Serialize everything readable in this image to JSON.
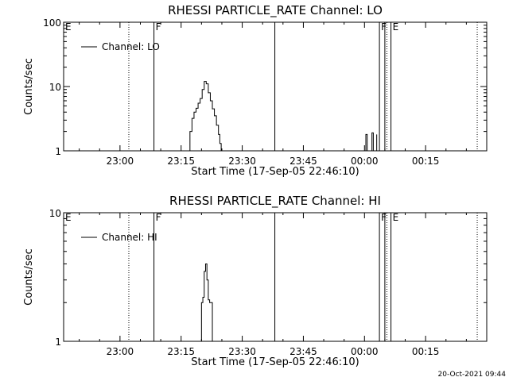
{
  "timestamp": "20-Oct-2021 09:44",
  "chart_data": [
    {
      "type": "line",
      "title": "RHESSI PARTICLE_RATE Channel: LO",
      "xlabel": "Start Time (17-Sep-05 22:46:10)",
      "ylabel": "Counts/sec",
      "y_scale": "log",
      "xlim": [
        "22:46:10",
        "00:30:00"
      ],
      "ylim": [
        1,
        100
      ],
      "x_ticks": [
        "23:00",
        "23:15",
        "23:30",
        "23:45",
        "00:00",
        "00:15"
      ],
      "y_ticks": [
        "1",
        "10",
        "100"
      ],
      "legend": {
        "label": "Channel: LO",
        "placement": "top-left"
      },
      "markers": [
        {
          "time": "23:08:20",
          "label": "F",
          "style": "solid"
        },
        {
          "time": "23:38:00",
          "label": "",
          "style": "solid"
        },
        {
          "time": "00:03:40",
          "label": "F",
          "style": "solid"
        },
        {
          "time": "00:05:00",
          "label": "",
          "style": "solid"
        },
        {
          "time": "00:06:30",
          "label": "E",
          "style": "solid"
        },
        {
          "time": "22:46:10",
          "label": "E",
          "style": "dotted"
        },
        {
          "time": "23:02:10",
          "label": "",
          "style": "dotted"
        },
        {
          "time": "00:05:30",
          "label": "",
          "style": "dotted"
        },
        {
          "time": "00:27:40",
          "label": "",
          "style": "dotted"
        }
      ],
      "series": [
        {
          "x": [
            "23:16:40",
            "23:17:10",
            "23:17:40",
            "23:18:10",
            "23:18:40",
            "23:19:10",
            "23:19:40",
            "23:20:10",
            "23:20:40",
            "23:21:10",
            "23:21:40",
            "23:22:10",
            "23:22:40",
            "23:23:10",
            "23:23:40",
            "23:24:10",
            "23:24:30",
            "23:24:50",
            "23:25:10",
            "00:00:00",
            "00:00:20",
            "00:00:40",
            "00:01:30",
            "00:01:50",
            "00:02:10",
            "00:02:40",
            "00:03:00"
          ],
          "y": [
            1.0,
            2.0,
            3.2,
            4.0,
            4.6,
            5.5,
            6.5,
            9.0,
            12.0,
            11.0,
            8.0,
            6.0,
            4.5,
            3.5,
            2.5,
            1.8,
            1.3,
            1.0,
            1.0,
            1.0,
            1.8,
            1.0,
            1.0,
            1.9,
            1.0,
            1.0,
            1.8
          ]
        }
      ]
    },
    {
      "type": "line",
      "title": "RHESSI PARTICLE_RATE Channel: HI",
      "xlabel": "Start Time (17-Sep-05 22:46:10)",
      "ylabel": "Counts/sec",
      "y_scale": "log",
      "xlim": [
        "22:46:10",
        "00:30:00"
      ],
      "ylim": [
        1,
        10
      ],
      "x_ticks": [
        "23:00",
        "23:15",
        "23:30",
        "23:45",
        "00:00",
        "00:15"
      ],
      "y_ticks": [
        "1",
        "10"
      ],
      "legend": {
        "label": "Channel: HI",
        "placement": "top-left"
      },
      "markers": [
        {
          "time": "23:08:20",
          "label": "F",
          "style": "solid"
        },
        {
          "time": "23:38:00",
          "label": "",
          "style": "solid"
        },
        {
          "time": "00:03:40",
          "label": "F",
          "style": "solid"
        },
        {
          "time": "00:05:00",
          "label": "",
          "style": "solid"
        },
        {
          "time": "00:06:30",
          "label": "E",
          "style": "solid"
        },
        {
          "time": "22:46:10",
          "label": "E",
          "style": "dotted"
        },
        {
          "time": "23:02:10",
          "label": "",
          "style": "dotted"
        },
        {
          "time": "00:05:30",
          "label": "",
          "style": "dotted"
        },
        {
          "time": "00:27:40",
          "label": "",
          "style": "dotted"
        }
      ],
      "series": [
        {
          "x": [
            "23:19:40",
            "23:20:00",
            "23:20:20",
            "23:20:40",
            "23:21:00",
            "23:21:20",
            "23:21:40",
            "23:22:00",
            "23:22:20",
            "23:22:40",
            "23:23:00"
          ],
          "y": [
            1.0,
            2.0,
            2.2,
            3.5,
            4.0,
            3.0,
            2.1,
            2.0,
            2.0,
            1.0,
            1.0
          ]
        }
      ]
    }
  ]
}
